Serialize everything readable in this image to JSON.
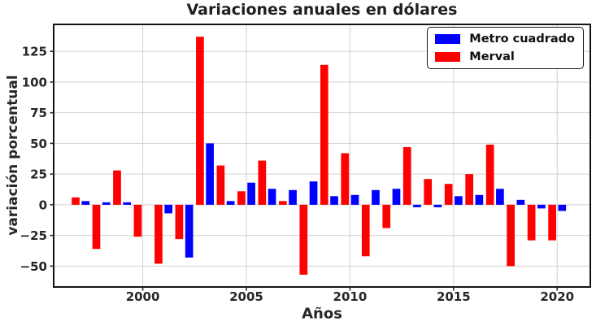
{
  "chart_data": {
    "type": "bar",
    "title": "Variaciones anuales en dólares",
    "xlabel": "Años",
    "ylabel": "variación porcentual",
    "categories": [
      1997,
      1998,
      1999,
      2000,
      2001,
      2002,
      2003,
      2004,
      2005,
      2006,
      2007,
      2008,
      2009,
      2010,
      2011,
      2012,
      2013,
      2014,
      2015,
      2016,
      2017,
      2018,
      2019,
      2020
    ],
    "series": [
      {
        "name": "Metro cuadrado",
        "color": "#0000ff",
        "offset": 0.24,
        "values": [
          3,
          2,
          2,
          0,
          -7,
          -43,
          50,
          3,
          18,
          13,
          12,
          19,
          7,
          8,
          12,
          13,
          -2,
          -2,
          7,
          8,
          13,
          4,
          -3,
          -5
        ]
      },
      {
        "name": "Merval",
        "color": "#ff0000",
        "offset": -0.24,
        "values": [
          6,
          -36,
          28,
          -26,
          -48,
          -28,
          137,
          32,
          11,
          36,
          3,
          -57,
          114,
          42,
          -42,
          -19,
          47,
          21,
          17,
          25,
          49,
          -50,
          -29,
          -29
        ]
      }
    ],
    "bar_width": 0.38,
    "xlim": [
      1995.7,
      2021.6
    ],
    "ylim": [
      -67,
      147
    ],
    "xticks": [
      2000,
      2005,
      2010,
      2015,
      2020
    ],
    "yticks": [
      125,
      100,
      75,
      50,
      25,
      0,
      -25,
      -50
    ],
    "grid": true,
    "grid_color": "#d2d2d2",
    "axis_color": "#141414",
    "legend_position": "upper right"
  }
}
